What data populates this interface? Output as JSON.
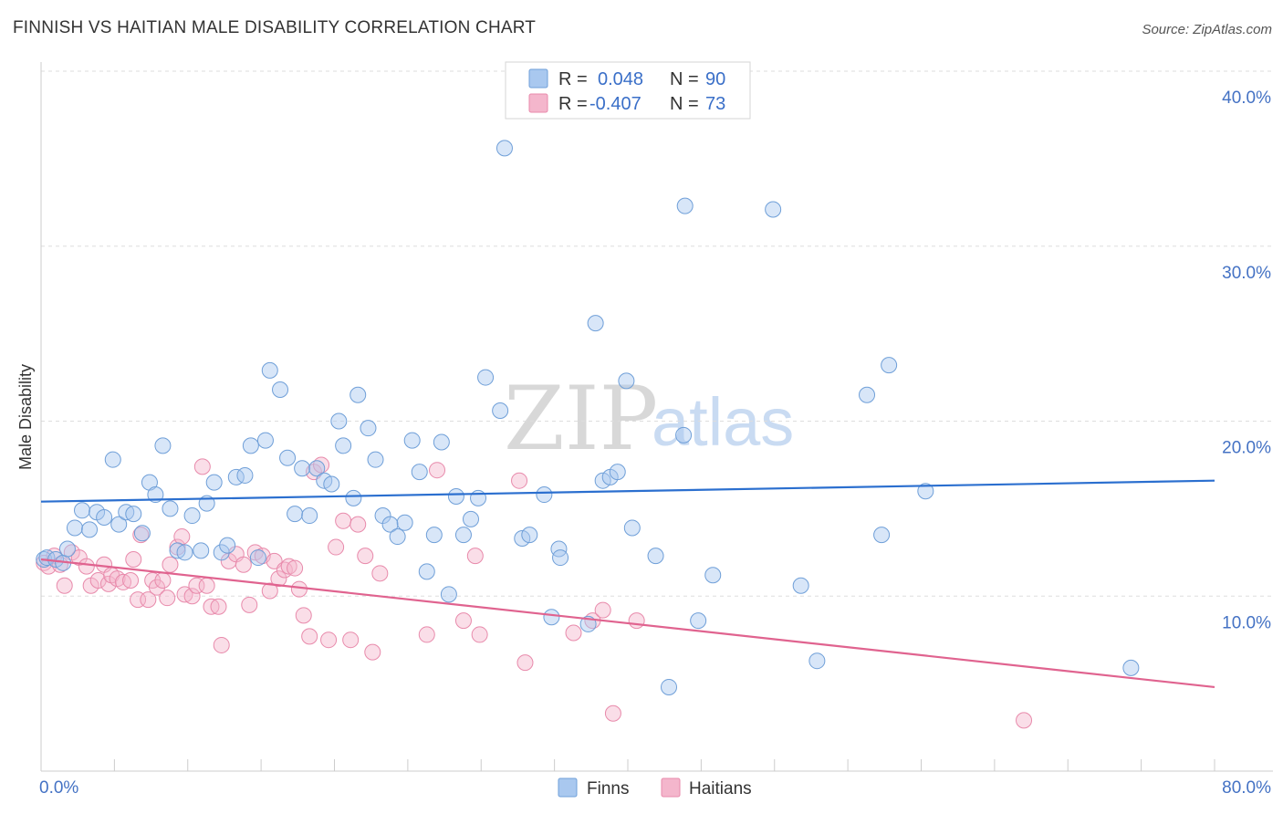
{
  "header": {
    "title": "FINNISH VS HAITIAN MALE DISABILITY CORRELATION CHART",
    "source": "Source: ZipAtlas.com"
  },
  "watermark": {
    "zip": "ZIP",
    "atlas": "atlas"
  },
  "legend": {
    "rows": [
      {
        "r_label": "R =",
        "r_value": "0.048",
        "n_label": "N =",
        "n_value": "90"
      },
      {
        "r_label": "R =",
        "r_value": "-0.407",
        "n_label": "N =",
        "n_value": "73"
      }
    ]
  },
  "bottom_legend": {
    "items": [
      "Finns",
      "Haitians"
    ]
  },
  "colors": {
    "finns_fill": "#a9c8ef",
    "finns_stroke": "#6f9fd8",
    "finns_line": "#2b6fcf",
    "haitians_fill": "#f4b6cc",
    "haitians_stroke": "#e88aab",
    "haitians_line": "#e0638f",
    "tick_text": "#4472c4",
    "grid": "#dddddd"
  },
  "chart_data": {
    "type": "scatter",
    "title": "FINNISH VS HAITIAN MALE DISABILITY CORRELATION CHART",
    "xlabel": "",
    "ylabel": "Male Disability",
    "xlim": [
      0,
      80
    ],
    "ylim": [
      0,
      40
    ],
    "x_tick_labels": [
      "0.0%",
      "80.0%"
    ],
    "y_tick_labels": [
      "10.0%",
      "20.0%",
      "30.0%",
      "40.0%"
    ],
    "y_ticks": [
      10,
      20,
      30,
      40
    ],
    "grid": "horizontal dashed",
    "legend_position": "top-center",
    "series": [
      {
        "name": "Finns",
        "trend": [
          [
            0,
            15.4
          ],
          [
            80,
            16.6
          ]
        ],
        "points": [
          [
            0.2,
            12.1
          ],
          [
            0.4,
            12.2
          ],
          [
            1.0,
            12.1
          ],
          [
            1.5,
            11.9
          ],
          [
            1.8,
            12.7
          ],
          [
            2.3,
            13.9
          ],
          [
            2.8,
            14.9
          ],
          [
            3.3,
            13.8
          ],
          [
            3.8,
            14.8
          ],
          [
            4.3,
            14.5
          ],
          [
            4.9,
            17.8
          ],
          [
            5.3,
            14.1
          ],
          [
            5.8,
            14.8
          ],
          [
            6.3,
            14.7
          ],
          [
            6.9,
            13.6
          ],
          [
            7.4,
            16.5
          ],
          [
            7.8,
            15.8
          ],
          [
            8.3,
            18.6
          ],
          [
            8.8,
            15.0
          ],
          [
            9.3,
            12.6
          ],
          [
            9.8,
            12.5
          ],
          [
            10.3,
            14.6
          ],
          [
            10.9,
            12.6
          ],
          [
            11.3,
            15.3
          ],
          [
            11.8,
            16.5
          ],
          [
            12.3,
            12.5
          ],
          [
            12.7,
            12.9
          ],
          [
            13.3,
            16.8
          ],
          [
            13.9,
            16.9
          ],
          [
            14.3,
            18.6
          ],
          [
            14.8,
            12.2
          ],
          [
            15.3,
            18.9
          ],
          [
            15.6,
            22.9
          ],
          [
            16.3,
            21.8
          ],
          [
            16.8,
            17.9
          ],
          [
            17.3,
            14.7
          ],
          [
            17.8,
            17.3
          ],
          [
            18.3,
            14.6
          ],
          [
            18.8,
            17.3
          ],
          [
            19.3,
            16.6
          ],
          [
            19.8,
            16.4
          ],
          [
            20.3,
            20.0
          ],
          [
            20.6,
            18.6
          ],
          [
            21.3,
            15.6
          ],
          [
            21.6,
            21.5
          ],
          [
            22.3,
            19.6
          ],
          [
            22.8,
            17.8
          ],
          [
            23.3,
            14.6
          ],
          [
            23.8,
            14.1
          ],
          [
            24.3,
            13.4
          ],
          [
            24.8,
            14.2
          ],
          [
            25.3,
            18.9
          ],
          [
            25.8,
            17.1
          ],
          [
            26.3,
            11.4
          ],
          [
            26.8,
            13.5
          ],
          [
            27.3,
            18.8
          ],
          [
            27.8,
            10.1
          ],
          [
            28.3,
            15.7
          ],
          [
            28.8,
            13.5
          ],
          [
            29.3,
            14.4
          ],
          [
            29.8,
            15.6
          ],
          [
            30.3,
            22.5
          ],
          [
            31.3,
            20.6
          ],
          [
            31.6,
            35.6
          ],
          [
            32.8,
            13.3
          ],
          [
            33.3,
            13.5
          ],
          [
            34.3,
            15.8
          ],
          [
            34.8,
            8.8
          ],
          [
            35.3,
            12.7
          ],
          [
            35.4,
            12.2
          ],
          [
            37.3,
            8.4
          ],
          [
            37.8,
            25.6
          ],
          [
            38.3,
            16.6
          ],
          [
            38.8,
            16.8
          ],
          [
            39.3,
            17.1
          ],
          [
            39.9,
            22.3
          ],
          [
            40.3,
            13.9
          ],
          [
            41.9,
            12.3
          ],
          [
            42.8,
            4.8
          ],
          [
            43.8,
            19.2
          ],
          [
            43.9,
            32.3
          ],
          [
            44.8,
            8.6
          ],
          [
            45.8,
            11.2
          ],
          [
            49.9,
            32.1
          ],
          [
            51.8,
            10.6
          ],
          [
            52.9,
            6.3
          ],
          [
            56.3,
            21.5
          ],
          [
            57.3,
            13.5
          ],
          [
            57.8,
            23.2
          ],
          [
            60.3,
            16.0
          ],
          [
            74.3,
            5.9
          ]
        ]
      },
      {
        "name": "Haitians",
        "trend": [
          [
            0,
            12.1
          ],
          [
            80,
            4.8
          ]
        ],
        "points": [
          [
            0.2,
            11.9
          ],
          [
            0.5,
            11.7
          ],
          [
            0.9,
            12.3
          ],
          [
            1.3,
            11.8
          ],
          [
            1.6,
            10.6
          ],
          [
            2.1,
            12.5
          ],
          [
            2.6,
            12.2
          ],
          [
            3.1,
            11.7
          ],
          [
            3.4,
            10.6
          ],
          [
            3.9,
            10.9
          ],
          [
            4.3,
            11.8
          ],
          [
            4.6,
            10.7
          ],
          [
            4.8,
            11.2
          ],
          [
            5.2,
            11.0
          ],
          [
            5.6,
            10.8
          ],
          [
            6.1,
            10.9
          ],
          [
            6.3,
            12.1
          ],
          [
            6.6,
            9.8
          ],
          [
            6.8,
            13.5
          ],
          [
            7.3,
            9.8
          ],
          [
            7.6,
            10.9
          ],
          [
            7.9,
            10.5
          ],
          [
            8.3,
            10.9
          ],
          [
            8.8,
            11.8
          ],
          [
            8.6,
            9.9
          ],
          [
            9.3,
            12.8
          ],
          [
            9.6,
            13.4
          ],
          [
            9.8,
            10.1
          ],
          [
            10.3,
            10.0
          ],
          [
            10.6,
            10.6
          ],
          [
            11.0,
            17.4
          ],
          [
            11.3,
            10.6
          ],
          [
            11.6,
            9.4
          ],
          [
            12.1,
            9.4
          ],
          [
            12.3,
            7.2
          ],
          [
            12.8,
            12.0
          ],
          [
            13.3,
            12.4
          ],
          [
            13.8,
            11.8
          ],
          [
            14.2,
            9.5
          ],
          [
            14.6,
            12.5
          ],
          [
            15.1,
            12.3
          ],
          [
            15.6,
            10.3
          ],
          [
            15.9,
            12.0
          ],
          [
            16.2,
            11.0
          ],
          [
            16.6,
            11.5
          ],
          [
            16.9,
            11.7
          ],
          [
            17.3,
            11.6
          ],
          [
            17.6,
            10.4
          ],
          [
            17.9,
            8.9
          ],
          [
            18.3,
            7.7
          ],
          [
            18.6,
            17.1
          ],
          [
            19.1,
            17.5
          ],
          [
            19.6,
            7.5
          ],
          [
            20.1,
            12.8
          ],
          [
            20.6,
            14.3
          ],
          [
            21.1,
            7.5
          ],
          [
            21.6,
            14.1
          ],
          [
            22.1,
            12.3
          ],
          [
            22.6,
            6.8
          ],
          [
            23.1,
            11.3
          ],
          [
            26.3,
            7.8
          ],
          [
            27.0,
            17.2
          ],
          [
            28.8,
            8.6
          ],
          [
            29.6,
            12.3
          ],
          [
            29.9,
            7.8
          ],
          [
            32.6,
            16.6
          ],
          [
            33.0,
            6.2
          ],
          [
            36.3,
            7.9
          ],
          [
            37.6,
            8.6
          ],
          [
            38.3,
            9.2
          ],
          [
            39.0,
            3.3
          ],
          [
            40.6,
            8.6
          ],
          [
            67.0,
            2.9
          ]
        ]
      }
    ]
  }
}
